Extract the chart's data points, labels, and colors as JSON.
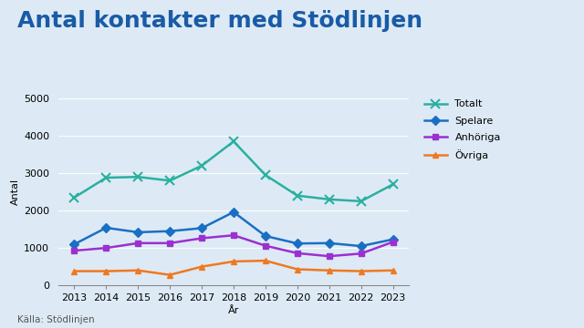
{
  "title": "Antal kontakter med Stödlinjen",
  "xlabel": "År",
  "ylabel": "Antal",
  "source": "Källa: Stödlinjen",
  "years": [
    2013,
    2014,
    2015,
    2016,
    2017,
    2018,
    2019,
    2020,
    2021,
    2022,
    2023
  ],
  "series": {
    "Totalt": {
      "values": [
        2350,
        2880,
        2900,
        2800,
        3200,
        3850,
        2950,
        2400,
        2300,
        2250,
        2700
      ],
      "color": "#2ab0a0",
      "marker": "x",
      "marker_size": 7,
      "linewidth": 1.8
    },
    "Spelare": {
      "values": [
        1100,
        1540,
        1420,
        1450,
        1530,
        1960,
        1320,
        1120,
        1130,
        1050,
        1230
      ],
      "color": "#1a6fc4",
      "marker": "D",
      "marker_size": 5,
      "linewidth": 1.8
    },
    "Anhöriga": {
      "values": [
        930,
        1000,
        1130,
        1130,
        1260,
        1340,
        1060,
        860,
        780,
        850,
        1160
      ],
      "color": "#9b30d0",
      "marker": "s",
      "marker_size": 5,
      "linewidth": 1.8
    },
    "Övriga": {
      "values": [
        380,
        380,
        400,
        280,
        500,
        640,
        660,
        430,
        400,
        380,
        400
      ],
      "color": "#f07820",
      "marker": "^",
      "marker_size": 5,
      "linewidth": 1.8
    }
  },
  "ylim": [
    0,
    5000
  ],
  "yticks": [
    0,
    1000,
    2000,
    3000,
    4000,
    5000
  ],
  "background_color": "#ddeaf5",
  "title_color": "#1a5ba6",
  "title_fontsize": 18,
  "axis_label_fontsize": 8,
  "tick_fontsize": 8,
  "legend_fontsize": 8,
  "source_fontsize": 7.5
}
